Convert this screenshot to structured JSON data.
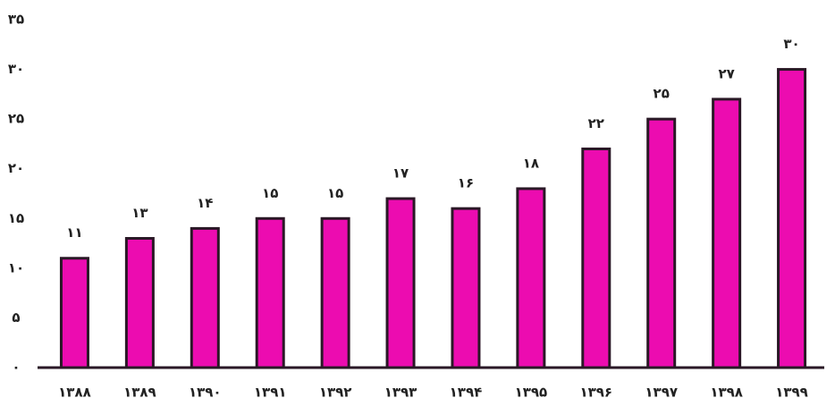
{
  "chart_data": {
    "type": "bar",
    "categories": [
      "۱۳۸۸",
      "۱۳۸۹",
      "۱۳۹۰",
      "۱۳۹۱",
      "۱۳۹۲",
      "۱۳۹۳",
      "۱۳۹۴",
      "۱۳۹۵",
      "۱۳۹۶",
      "۱۳۹۷",
      "۱۳۹۸",
      "۱۳۹۹"
    ],
    "values": [
      11,
      13,
      14,
      15,
      15,
      17,
      16,
      18,
      22,
      25,
      27,
      30
    ],
    "value_labels": [
      "۱۱",
      "۱۳",
      "۱۴",
      "۱۵",
      "۱۵",
      "۱۷",
      "۱۶",
      "۱۸",
      "۲۲",
      "۲۵",
      "۲۷",
      "۳۰"
    ],
    "color": "#ec0cb0",
    "ylim": [
      0,
      35
    ],
    "yticks": [
      {
        "value": 0,
        "label": "۰"
      },
      {
        "value": 5,
        "label": "۵"
      },
      {
        "value": 10,
        "label": "۱۰"
      },
      {
        "value": 15,
        "label": "۱۵"
      },
      {
        "value": 20,
        "label": "۲۰"
      },
      {
        "value": 25,
        "label": "۲۵"
      },
      {
        "value": 30,
        "label": "۳۰"
      },
      {
        "value": 35,
        "label": "۳۵"
      }
    ],
    "grid": false
  }
}
